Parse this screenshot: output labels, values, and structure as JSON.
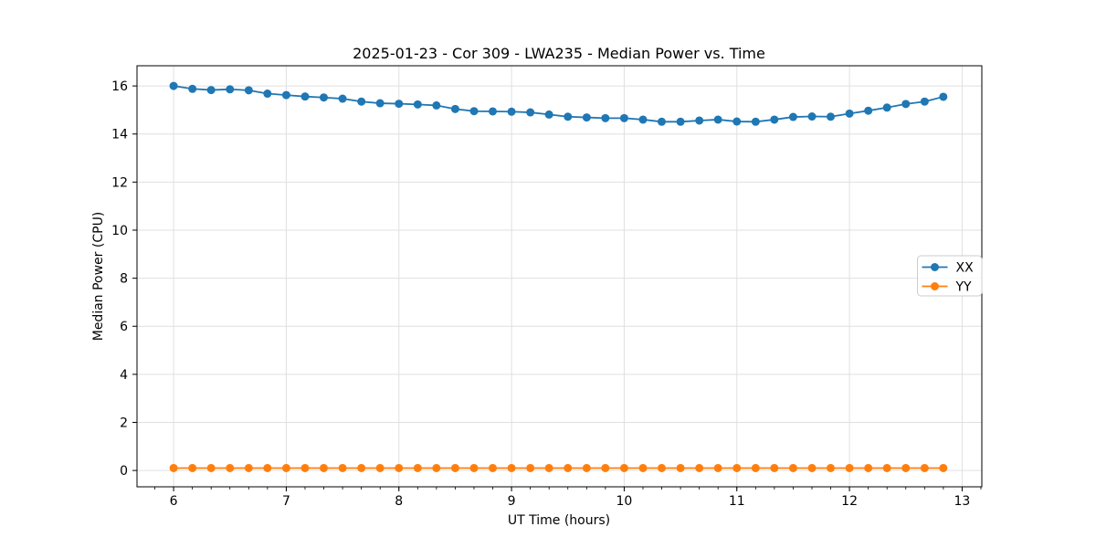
{
  "figure": {
    "background_color": "#ffffff",
    "plot_background_color": "#ffffff",
    "spine_color": "#000000",
    "grid_color": "#e0e0e0"
  },
  "chart_data": {
    "type": "line",
    "title": "2025-01-23 - Cor 309 - LWA235 - Median Power vs. Time",
    "xlabel": "UT Time (hours)",
    "ylabel": "Median Power (CPU)",
    "xlim": [
      5.675,
      13.175
    ],
    "ylim": [
      -0.68,
      16.84
    ],
    "xticks": [
      6,
      7,
      8,
      9,
      10,
      11,
      12,
      13
    ],
    "yticks": [
      0,
      2,
      4,
      6,
      8,
      10,
      12,
      14,
      16
    ],
    "x_minor_tick_step": 0.1666667,
    "grid": true,
    "legend_position": "center-right",
    "x": [
      6.0,
      6.167,
      6.333,
      6.5,
      6.667,
      6.833,
      7.0,
      7.167,
      7.333,
      7.5,
      7.667,
      7.833,
      8.0,
      8.167,
      8.333,
      8.5,
      8.667,
      8.833,
      9.0,
      9.167,
      9.333,
      9.5,
      9.667,
      9.833,
      10.0,
      10.167,
      10.333,
      10.5,
      10.667,
      10.833,
      11.0,
      11.167,
      11.333,
      11.5,
      11.667,
      11.833,
      12.0,
      12.167,
      12.333,
      12.5,
      12.667,
      12.833
    ],
    "series": [
      {
        "name": "XX",
        "color": "#1f77b4",
        "marker": "circle",
        "values": [
          16.0,
          15.88,
          15.83,
          15.86,
          15.82,
          15.68,
          15.62,
          15.56,
          15.52,
          15.47,
          15.35,
          15.28,
          15.26,
          15.23,
          15.19,
          15.04,
          14.95,
          14.94,
          14.93,
          14.9,
          14.81,
          14.72,
          14.69,
          14.66,
          14.66,
          14.6,
          14.51,
          14.51,
          14.56,
          14.6,
          14.52,
          14.51,
          14.6,
          14.71,
          14.73,
          14.72,
          14.85,
          14.97,
          15.1,
          15.25,
          15.35,
          15.55
        ]
      },
      {
        "name": "YY",
        "color": "#ff7f0e",
        "marker": "circle",
        "values": [
          0.1,
          0.1,
          0.1,
          0.1,
          0.1,
          0.1,
          0.1,
          0.1,
          0.1,
          0.1,
          0.1,
          0.1,
          0.1,
          0.1,
          0.1,
          0.1,
          0.1,
          0.1,
          0.1,
          0.1,
          0.1,
          0.1,
          0.1,
          0.1,
          0.1,
          0.1,
          0.1,
          0.1,
          0.1,
          0.1,
          0.1,
          0.1,
          0.1,
          0.1,
          0.1,
          0.1,
          0.1,
          0.1,
          0.1,
          0.1,
          0.1,
          0.1
        ]
      }
    ],
    "legend_entries": [
      {
        "label": "XX",
        "color": "#1f77b4"
      },
      {
        "label": "YY",
        "color": "#ff7f0e"
      }
    ]
  }
}
